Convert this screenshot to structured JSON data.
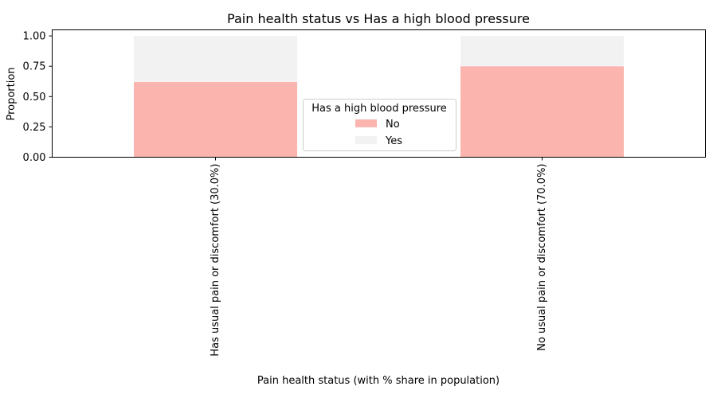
{
  "chart_data": {
    "type": "bar",
    "stacked": true,
    "title": "Pain health status vs Has a high blood pressure",
    "xlabel": "Pain health status (with % share in population)",
    "ylabel": "Proportion",
    "ylim": [
      0,
      1.05
    ],
    "yticks": [
      "0.00",
      "0.25",
      "0.50",
      "0.75",
      "1.00"
    ],
    "categories": [
      "Has usual pain or discomfort (30.0%)",
      "No usual pain or discomfort (70.0%)"
    ],
    "series": [
      {
        "name": "No",
        "color": "#fbb4ae",
        "values": [
          0.62,
          0.75
        ]
      },
      {
        "name": "Yes",
        "color": "#f2f2f2",
        "values": [
          0.38,
          0.25
        ]
      }
    ],
    "legend": {
      "title": "Has a high blood pressure",
      "placement": "center"
    },
    "grid": false
  }
}
